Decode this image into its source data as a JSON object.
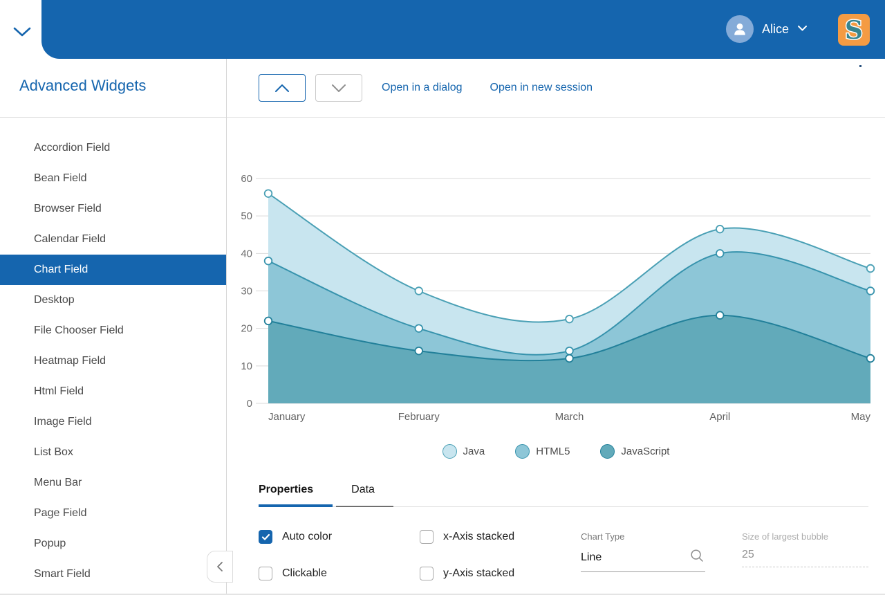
{
  "header": {
    "user_name": "Alice",
    "logo_letter": "S"
  },
  "colors": {
    "accent": "#1565ae",
    "logo_bg": "#f49b43",
    "logo_fg": "#37848f",
    "avatar_bg": "#84abd8"
  },
  "sidebar": {
    "title": "Advanced Widgets",
    "selected_index": 4,
    "items": [
      "Accordion Field",
      "Bean Field",
      "Browser Field",
      "Calendar Field",
      "Chart Field",
      "Desktop",
      "File Chooser Field",
      "Heatmap Field",
      "Html Field",
      "Image Field",
      "List Box",
      "Menu Bar",
      "Page Field",
      "Popup",
      "Smart Field"
    ]
  },
  "toolbar": {
    "links": [
      "Open in a dialog",
      "Open in new session"
    ]
  },
  "chart_data": {
    "type": "area",
    "title": "",
    "x": [
      "January",
      "February",
      "March",
      "April",
      "May"
    ],
    "series": [
      {
        "name": "Java",
        "values": [
          56,
          30,
          22.5,
          46.5,
          36
        ],
        "fill": "#c8e5ef",
        "line": "#4aa0b5"
      },
      {
        "name": "HTML5",
        "values": [
          38,
          20,
          14,
          40,
          30
        ],
        "fill": "#8dc6d7",
        "line": "#3793ad"
      },
      {
        "name": "JavaScript",
        "values": [
          22,
          14,
          12,
          23.5,
          12
        ],
        "fill": "#62aaba",
        "line": "#22809a"
      }
    ],
    "ylim": [
      0,
      60
    ],
    "yticks": [
      0,
      10,
      20,
      30,
      40,
      50,
      60
    ],
    "grid": true,
    "legend_position": "bottom"
  },
  "tabs": [
    {
      "label": "Properties",
      "active": true
    },
    {
      "label": "Data",
      "active": false
    }
  ],
  "properties": {
    "checkboxes": [
      {
        "label": "Auto color",
        "checked": true
      },
      {
        "label": "x-Axis stacked",
        "checked": false
      },
      {
        "label": "Clickable",
        "checked": false
      },
      {
        "label": "y-Axis stacked",
        "checked": false
      }
    ],
    "chart_type": {
      "label": "Chart Type",
      "value": "Line"
    },
    "bubble_size": {
      "label": "Size of largest bubble",
      "value": "25"
    }
  }
}
